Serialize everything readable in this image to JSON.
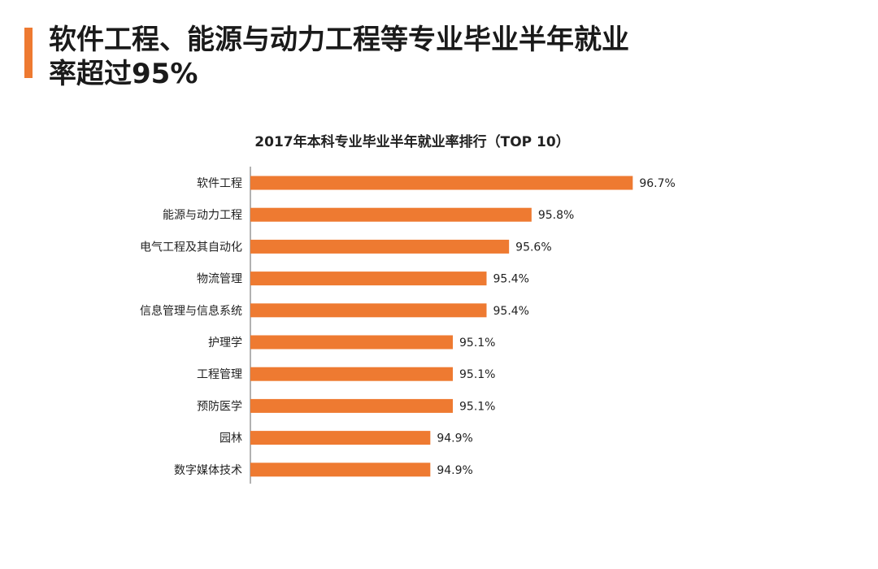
{
  "headline": "软件工程、能源与动力工程等专业毕业半年就业\n率超过95%",
  "colors": {
    "accent": "#ee7a31",
    "bar": "#ee7a31",
    "axis": "#666666",
    "text": "#222222"
  },
  "chart_data": {
    "type": "bar",
    "orientation": "horizontal",
    "title": "2017年本科专业毕业半年就业率排行（TOP 10）",
    "xlabel": "",
    "ylabel": "",
    "xlim": [
      93.3,
      96.9
    ],
    "grid": false,
    "legend": "none",
    "categories": [
      "软件工程",
      "能源与动力工程",
      "电气工程及其自动化",
      "物流管理",
      "信息管理与信息系统",
      "护理学",
      "工程管理",
      "预防医学",
      "园林",
      "数字媒体技术"
    ],
    "values": [
      96.7,
      95.8,
      95.6,
      95.4,
      95.4,
      95.1,
      95.1,
      95.1,
      94.9,
      94.9
    ],
    "data_labels": [
      "96.7%",
      "95.8%",
      "95.6%",
      "95.4%",
      "95.4%",
      "95.1%",
      "95.1%",
      "95.1%",
      "94.9%",
      "94.9%"
    ]
  }
}
